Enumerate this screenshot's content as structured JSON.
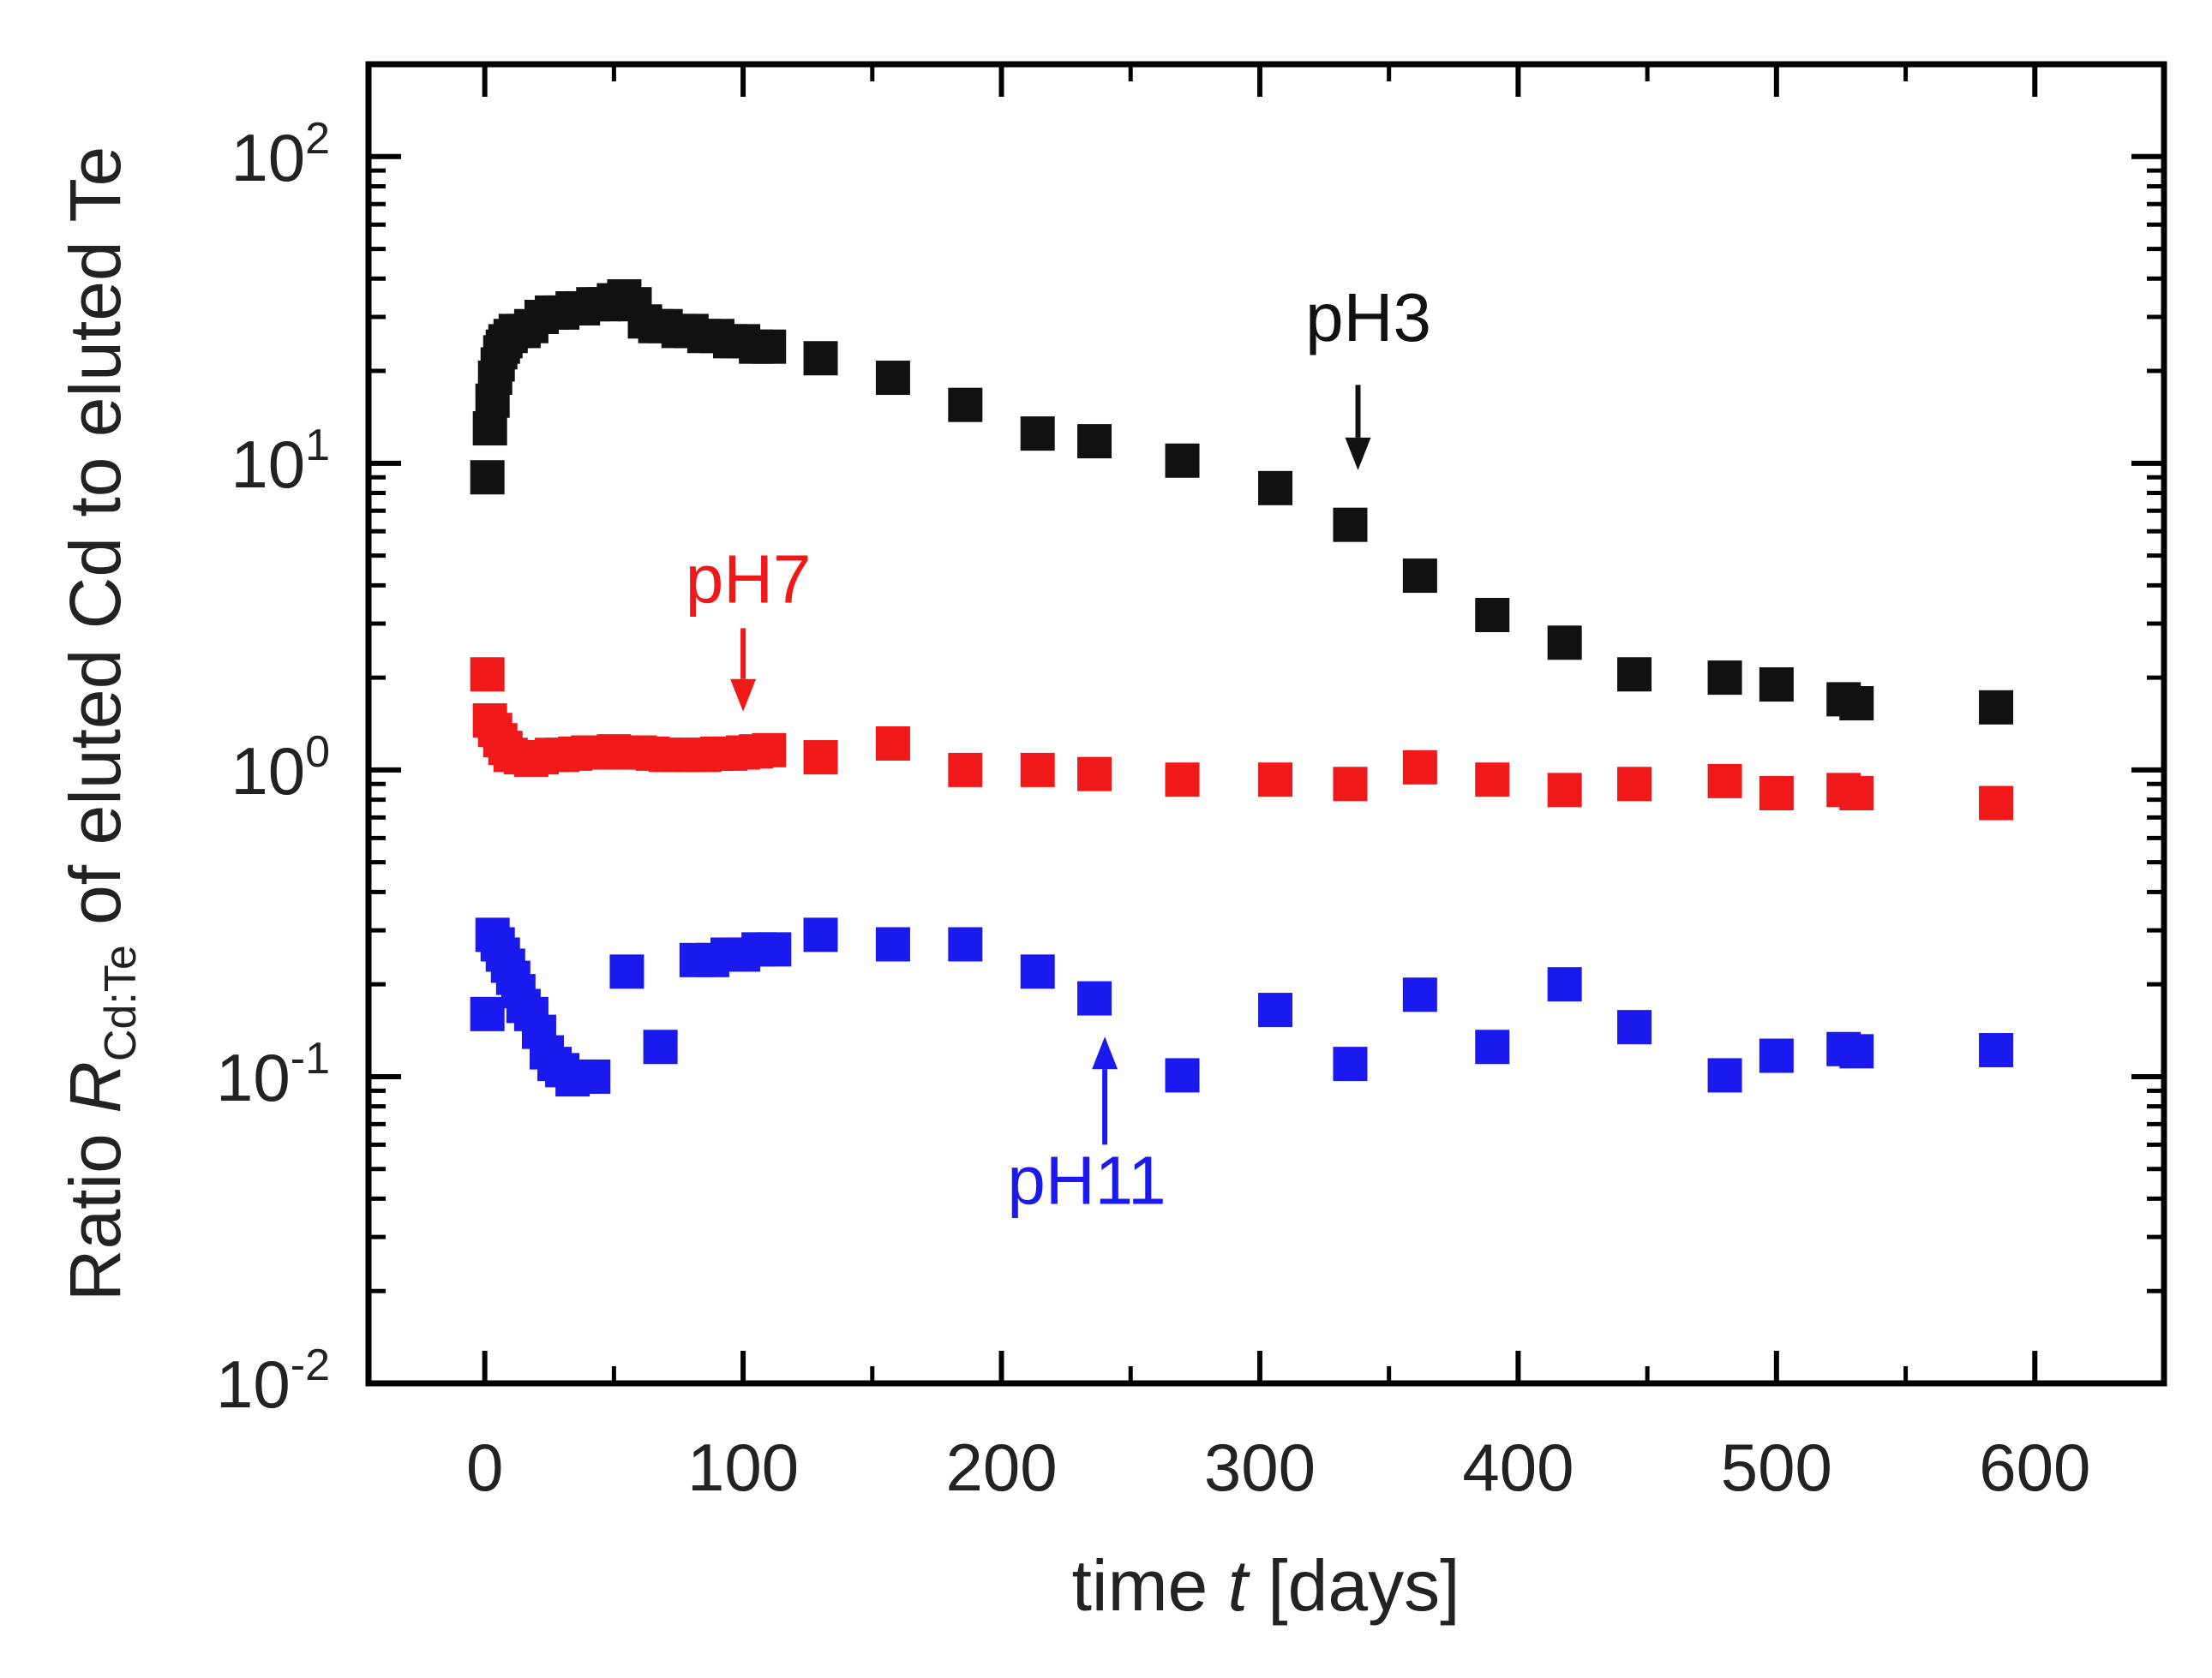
{
  "chart_data": {
    "type": "scatter",
    "title": "",
    "xlabel": {
      "prefix": "time ",
      "var": "t",
      "suffix": " [days]"
    },
    "ylabel": {
      "prefix": "Ratio ",
      "var": "R",
      "sub": "Cd:Te",
      "suffix": " of eluted Cd to eluted Te"
    },
    "xlim": [
      -45,
      650
    ],
    "ylim": [
      0.01,
      200
    ],
    "yscale": "log",
    "xticks": [
      0,
      100,
      200,
      300,
      400,
      500,
      600
    ],
    "yticks": [
      {
        "value": 100,
        "base": "10",
        "exp": "2"
      },
      {
        "value": 10,
        "base": "10",
        "exp": "1"
      },
      {
        "value": 1,
        "base": "10",
        "exp": "0"
      },
      {
        "value": 0.1,
        "base": "10",
        "exp": "-1"
      },
      {
        "value": 0.01,
        "base": "10",
        "exp": "-2"
      }
    ],
    "marker": "square",
    "series": [
      {
        "name": "pH3",
        "color": "#111111",
        "points": [
          [
            1,
            9
          ],
          [
            2,
            13
          ],
          [
            3,
            16
          ],
          [
            4,
            19
          ],
          [
            5,
            21
          ],
          [
            6,
            23
          ],
          [
            7,
            24
          ],
          [
            8,
            25
          ],
          [
            10,
            26
          ],
          [
            12,
            27
          ],
          [
            15,
            27
          ],
          [
            18,
            28
          ],
          [
            22,
            30
          ],
          [
            26,
            31
          ],
          [
            30,
            31
          ],
          [
            34,
            32
          ],
          [
            38,
            32
          ],
          [
            42,
            33
          ],
          [
            46,
            33
          ],
          [
            50,
            34
          ],
          [
            54,
            35
          ],
          [
            58,
            33
          ],
          [
            62,
            29
          ],
          [
            66,
            28
          ],
          [
            70,
            28
          ],
          [
            75,
            27
          ],
          [
            80,
            27
          ],
          [
            85,
            26
          ],
          [
            90,
            26
          ],
          [
            95,
            25
          ],
          [
            100,
            25
          ],
          [
            105,
            24
          ],
          [
            110,
            24
          ],
          [
            130,
            22
          ],
          [
            158,
            19
          ],
          [
            186,
            15.5
          ],
          [
            214,
            12.5
          ],
          [
            236,
            11.8
          ],
          [
            270,
            10.2
          ],
          [
            306,
            8.3
          ],
          [
            335,
            6.3
          ],
          [
            362,
            4.3
          ],
          [
            390,
            3.2
          ],
          [
            418,
            2.6
          ],
          [
            445,
            2.05
          ],
          [
            480,
            2.0
          ],
          [
            500,
            1.9
          ],
          [
            526,
            1.7
          ],
          [
            531,
            1.65
          ],
          [
            585,
            1.6
          ]
        ]
      },
      {
        "name": "pH7",
        "color": "#f01919",
        "points": [
          [
            1,
            2.05
          ],
          [
            2,
            1.45
          ],
          [
            4,
            1.35
          ],
          [
            6,
            1.25
          ],
          [
            8,
            1.18
          ],
          [
            10,
            1.12
          ],
          [
            14,
            1.1
          ],
          [
            18,
            1.08
          ],
          [
            22,
            1.1
          ],
          [
            26,
            1.12
          ],
          [
            30,
            1.12
          ],
          [
            35,
            1.13
          ],
          [
            40,
            1.14
          ],
          [
            45,
            1.14
          ],
          [
            50,
            1.15
          ],
          [
            55,
            1.14
          ],
          [
            60,
            1.14
          ],
          [
            65,
            1.13
          ],
          [
            70,
            1.12
          ],
          [
            75,
            1.12
          ],
          [
            80,
            1.12
          ],
          [
            85,
            1.12
          ],
          [
            90,
            1.13
          ],
          [
            95,
            1.13
          ],
          [
            100,
            1.14
          ],
          [
            105,
            1.15
          ],
          [
            110,
            1.16
          ],
          [
            130,
            1.1
          ],
          [
            158,
            1.22
          ],
          [
            186,
            1.0
          ],
          [
            214,
            1.0
          ],
          [
            236,
            0.97
          ],
          [
            270,
            0.93
          ],
          [
            306,
            0.93
          ],
          [
            335,
            0.9
          ],
          [
            362,
            1.02
          ],
          [
            390,
            0.93
          ],
          [
            418,
            0.86
          ],
          [
            445,
            0.9
          ],
          [
            480,
            0.92
          ],
          [
            500,
            0.84
          ],
          [
            526,
            0.86
          ],
          [
            531,
            0.84
          ],
          [
            585,
            0.78
          ]
        ]
      },
      {
        "name": "pH11",
        "color": "#1a1aef",
        "points": [
          [
            1,
            0.16
          ],
          [
            3,
            0.29
          ],
          [
            5,
            0.27
          ],
          [
            7,
            0.25
          ],
          [
            9,
            0.23
          ],
          [
            11,
            0.21
          ],
          [
            13,
            0.19
          ],
          [
            15,
            0.17
          ],
          [
            18,
            0.16
          ],
          [
            21,
            0.14
          ],
          [
            24,
            0.12
          ],
          [
            27,
            0.11
          ],
          [
            30,
            0.105
          ],
          [
            34,
            0.098
          ],
          [
            38,
            0.1
          ],
          [
            42,
            0.1
          ],
          [
            55,
            0.22
          ],
          [
            68,
            0.125
          ],
          [
            82,
            0.24
          ],
          [
            88,
            0.24
          ],
          [
            94,
            0.25
          ],
          [
            100,
            0.25
          ],
          [
            106,
            0.26
          ],
          [
            112,
            0.26
          ],
          [
            130,
            0.29
          ],
          [
            158,
            0.27
          ],
          [
            186,
            0.27
          ],
          [
            214,
            0.22
          ],
          [
            236,
            0.18
          ],
          [
            270,
            0.101
          ],
          [
            306,
            0.165
          ],
          [
            335,
            0.11
          ],
          [
            362,
            0.185
          ],
          [
            390,
            0.125
          ],
          [
            418,
            0.2
          ],
          [
            445,
            0.145
          ],
          [
            480,
            0.101
          ],
          [
            500,
            0.117
          ],
          [
            526,
            0.123
          ],
          [
            531,
            0.121
          ],
          [
            585,
            0.122
          ]
        ]
      }
    ],
    "annotations": [
      {
        "text": "pH3",
        "color": "#111111",
        "arrow_x": 338,
        "arrow_from": 18,
        "arrow_to": 9.5,
        "text_x": 342,
        "text_y": 30
      },
      {
        "text": "pH7",
        "color": "#f01919",
        "arrow_x": 100,
        "arrow_from": 2.9,
        "arrow_to": 1.55,
        "text_x": 102,
        "text_y": 4.2
      },
      {
        "text": "pH11",
        "color": "#1a1aef",
        "arrow_x": 240,
        "arrow_from": 0.06,
        "arrow_to": 0.135,
        "text_x": 233,
        "text_y": 0.046
      }
    ]
  }
}
